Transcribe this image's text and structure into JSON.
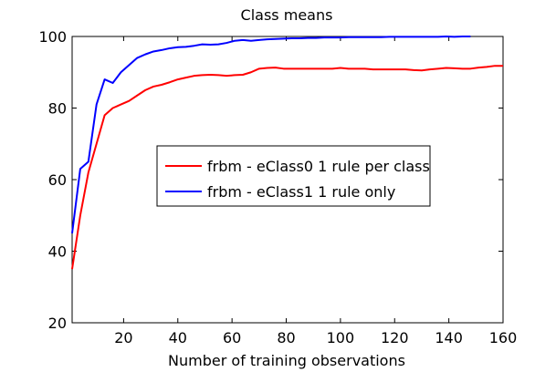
{
  "chart_data": {
    "type": "line",
    "title": "Class means",
    "xlabel": "Number of training observations",
    "ylabel": "",
    "xlim": [
      1,
      160
    ],
    "ylim": [
      20,
      100
    ],
    "xticks": [
      20,
      40,
      60,
      80,
      100,
      120,
      140,
      160
    ],
    "yticks": [
      20,
      40,
      60,
      80,
      100
    ],
    "grid": false,
    "legend_placement": "center",
    "series": [
      {
        "name": "frbm - eClass0 1 rule per class",
        "color": "#ff0000",
        "x": [
          1,
          4,
          7,
          10,
          13,
          16,
          19,
          22,
          25,
          28,
          31,
          34,
          37,
          40,
          43,
          46,
          49,
          52,
          55,
          58,
          61,
          64,
          67,
          70,
          73,
          76,
          79,
          82,
          85,
          88,
          91,
          94,
          97,
          100,
          103,
          106,
          109,
          112,
          115,
          118,
          121,
          124,
          127,
          130,
          133,
          136,
          139,
          142,
          145,
          148,
          151,
          154,
          157,
          160
        ],
        "values": [
          35,
          50,
          62,
          70,
          78,
          80,
          81,
          82,
          83.5,
          85,
          86,
          86.5,
          87.2,
          88,
          88.5,
          89,
          89.2,
          89.3,
          89.2,
          89,
          89.2,
          89.3,
          90,
          91,
          91.2,
          91.3,
          91,
          91,
          91,
          91,
          91,
          91,
          91,
          91.2,
          91,
          91,
          91,
          90.8,
          90.8,
          90.8,
          90.8,
          90.8,
          90.6,
          90.5,
          90.8,
          91,
          91.2,
          91.1,
          91,
          91,
          91.3,
          91.5,
          91.8,
          91.8
        ]
      },
      {
        "name": "frbm - eClass1 1 rule only",
        "color": "#0000ff",
        "x": [
          1,
          4,
          7,
          10,
          13,
          16,
          19,
          22,
          25,
          28,
          31,
          34,
          37,
          40,
          43,
          46,
          49,
          52,
          55,
          58,
          61,
          64,
          67,
          70,
          73,
          76,
          79,
          82,
          85,
          88,
          91,
          94,
          97,
          100,
          103,
          106,
          109,
          112,
          115,
          118,
          121,
          124,
          127,
          130,
          133,
          136,
          139,
          142,
          145,
          148
        ],
        "values": [
          45,
          63,
          65,
          81,
          88,
          87,
          90,
          92,
          94,
          95,
          95.8,
          96.2,
          96.7,
          97,
          97.1,
          97.4,
          97.8,
          97.7,
          97.8,
          98.2,
          98.8,
          99,
          98.8,
          99,
          99.2,
          99.3,
          99.4,
          99.5,
          99.5,
          99.6,
          99.6,
          99.7,
          99.7,
          99.7,
          99.8,
          99.8,
          99.8,
          99.8,
          99.8,
          99.9,
          99.9,
          99.9,
          99.9,
          99.9,
          99.9,
          99.9,
          100,
          99.9,
          100,
          100
        ]
      }
    ]
  }
}
